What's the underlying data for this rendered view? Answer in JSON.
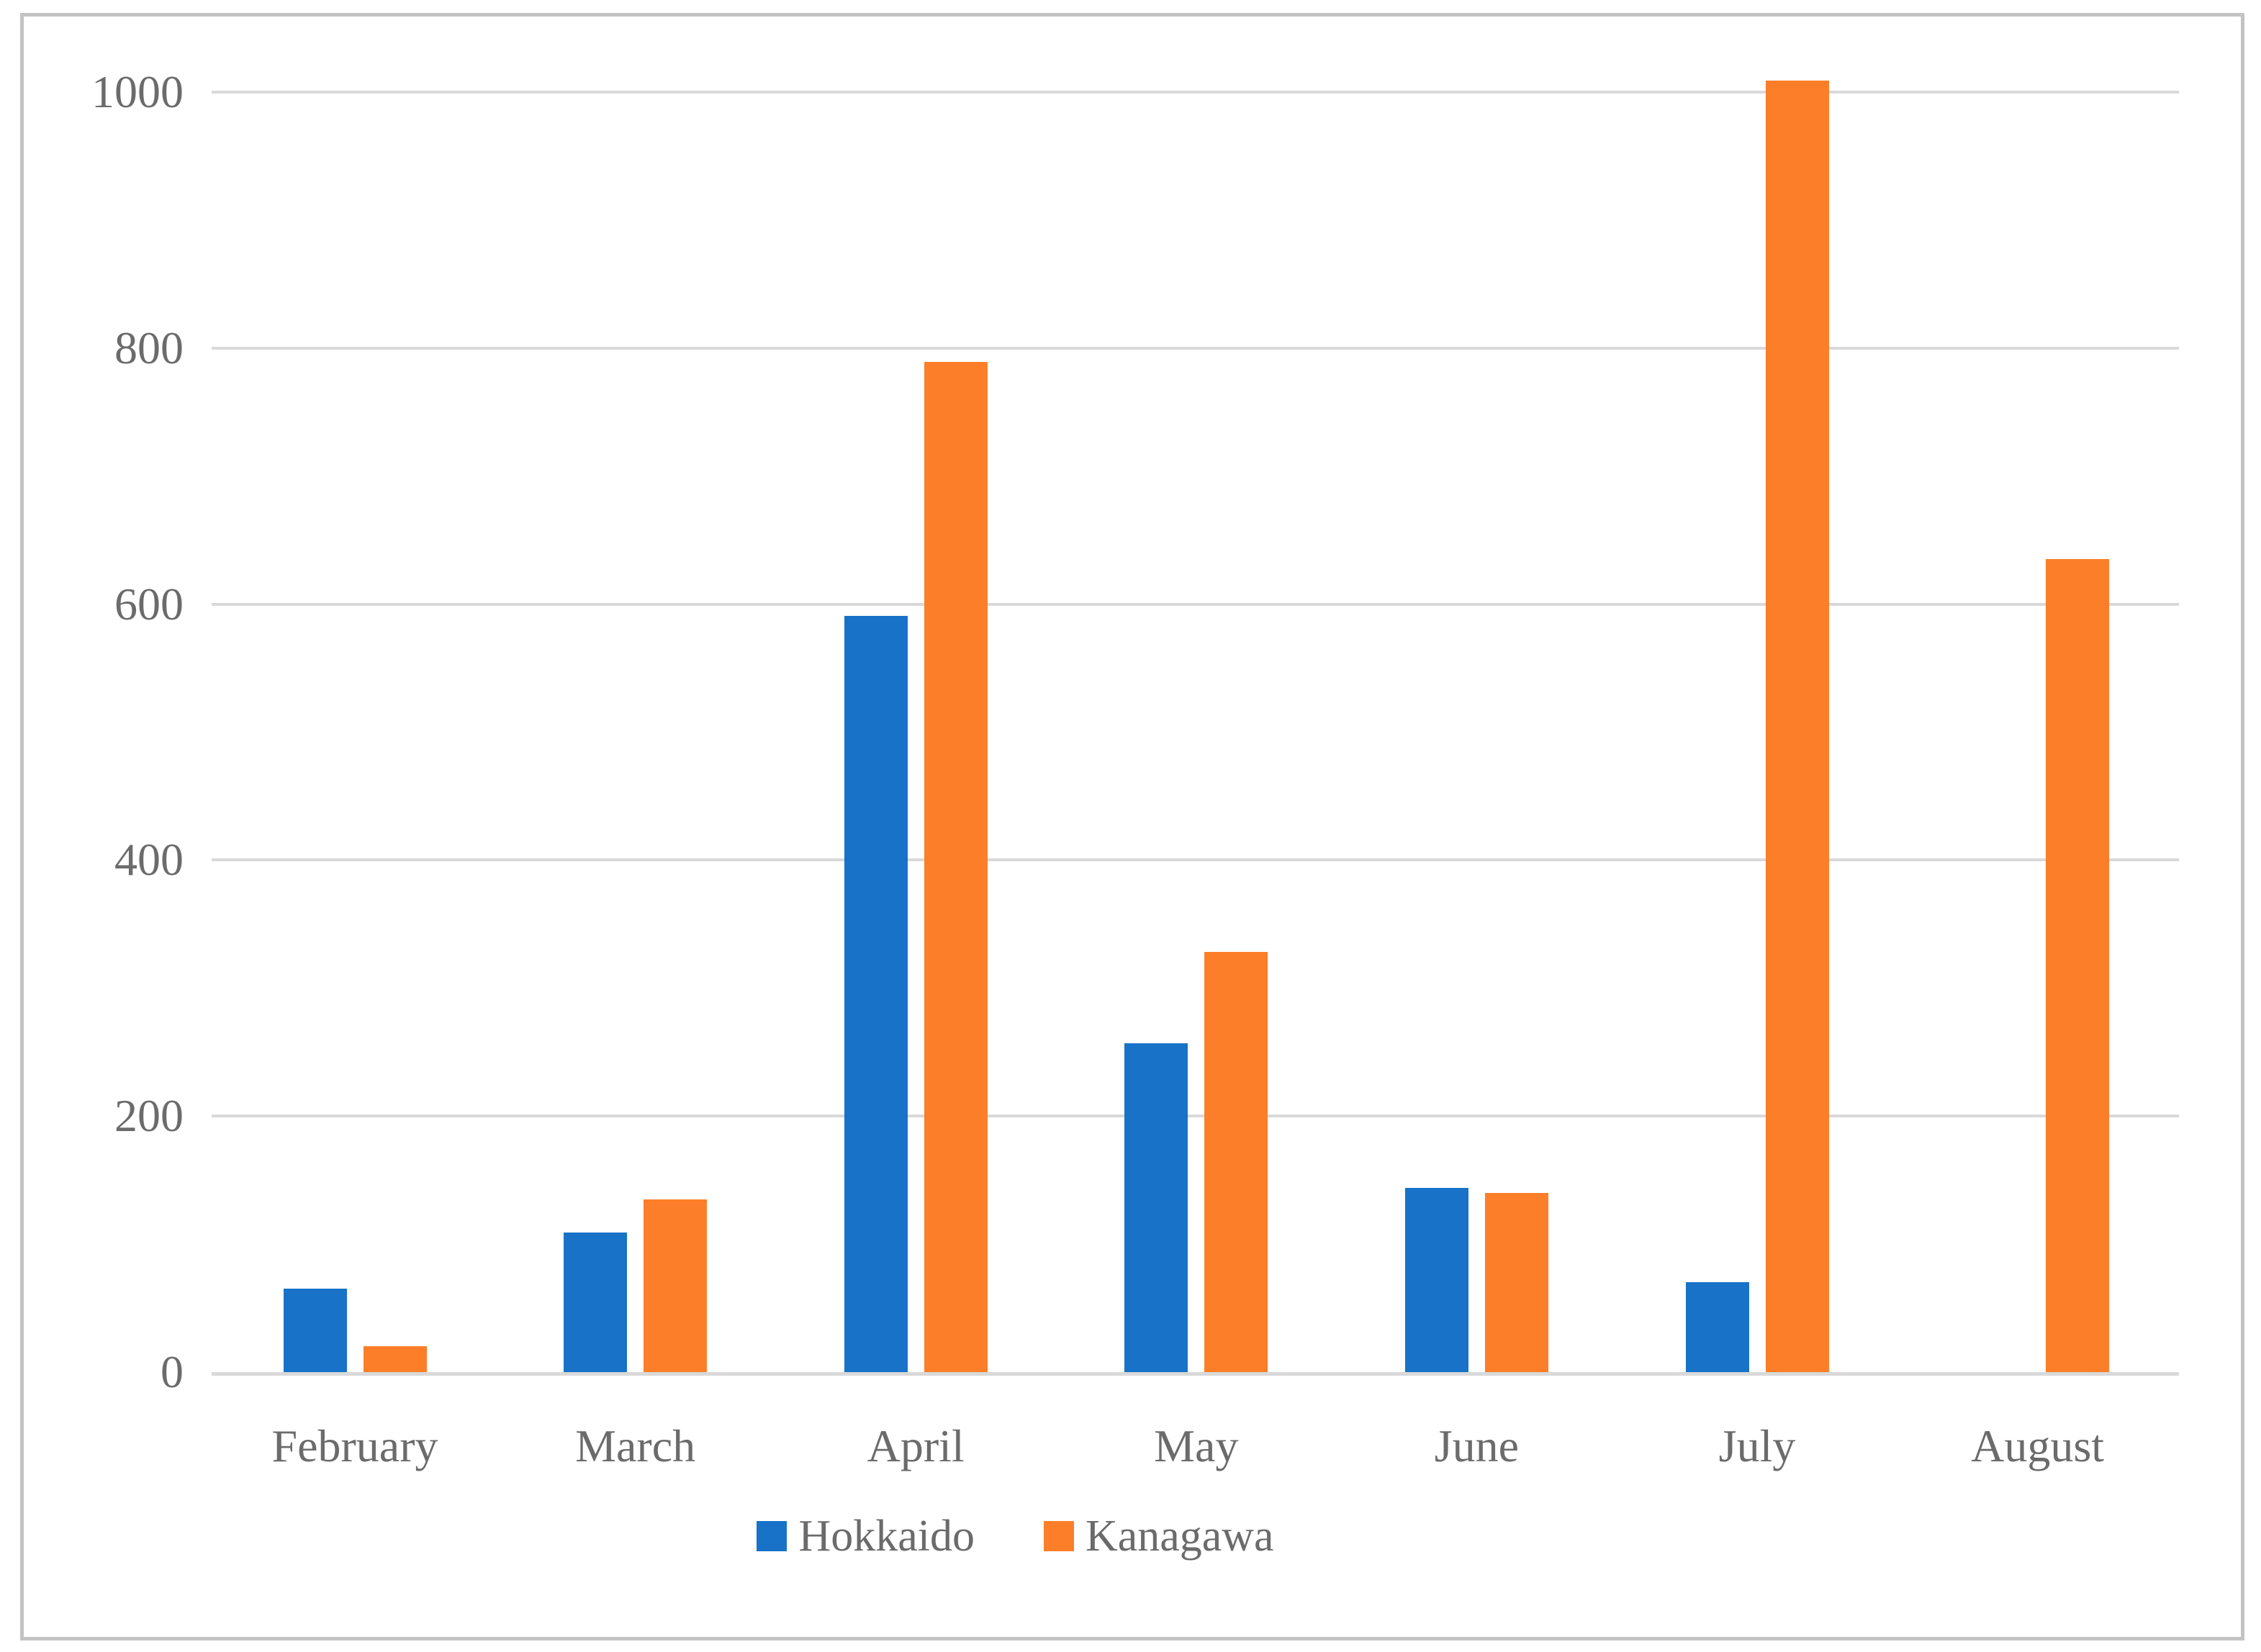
{
  "colors": {
    "hokkaido": "#1772C8",
    "kanagawa": "#FC7E28",
    "gridline": "#D9D9D9",
    "axis_line": "#D9D9D9",
    "tick_label": "#6B6B6B",
    "frame_border": "#C3C3C3",
    "background": "#FFFFFF"
  },
  "legend": {
    "items": [
      {
        "label": "Hokkaido",
        "color": "#1772C8"
      },
      {
        "label": "Kanagawa",
        "color": "#FC7E28"
      }
    ]
  },
  "chart_data": {
    "type": "bar",
    "title": "",
    "xlabel": "",
    "ylabel": "",
    "categories": [
      "February",
      "March",
      "April",
      "May",
      "June",
      "July",
      "August"
    ],
    "series": [
      {
        "name": "Hokkaido",
        "color": "#1772C8",
        "values": [
          65,
          109,
          591,
          257,
          144,
          70,
          0
        ]
      },
      {
        "name": "Kanagawa",
        "color": "#FC7E28",
        "values": [
          20,
          135,
          789,
          328,
          140,
          1009,
          635
        ]
      }
    ],
    "ylim": [
      0,
      1000
    ],
    "yticks": [
      0,
      200,
      400,
      600,
      800,
      1000
    ],
    "ytick_labels": [
      "0",
      "200",
      "400",
      "600",
      "800",
      "1000"
    ],
    "grid": true,
    "legend_position": "bottom-center"
  }
}
